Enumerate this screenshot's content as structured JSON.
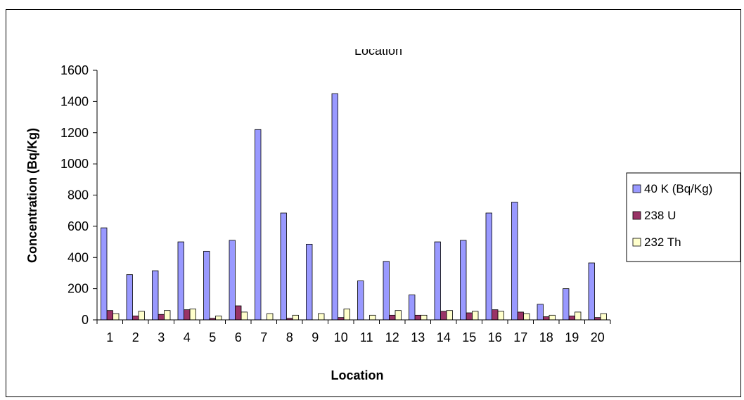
{
  "chart_data": {
    "type": "bar",
    "title": "Location",
    "xlabel": "Location",
    "ylabel": "Concentration (Bq/Kg)",
    "ylim": [
      0,
      1600
    ],
    "yticks": [
      0,
      200,
      400,
      600,
      800,
      1000,
      1200,
      1400,
      1600
    ],
    "grid": false,
    "legend_position": "right",
    "categories": [
      "1",
      "2",
      "3",
      "4",
      "5",
      "6",
      "7",
      "8",
      "9",
      "10",
      "11",
      "12",
      "13",
      "14",
      "15",
      "16",
      "17",
      "18",
      "19",
      "20"
    ],
    "series": [
      {
        "name": "40 K (Bq/Kg)",
        "color": "#9999ff",
        "values": [
          590,
          290,
          315,
          500,
          440,
          510,
          1220,
          685,
          485,
          1450,
          250,
          375,
          160,
          500,
          510,
          685,
          755,
          100,
          200,
          365
        ]
      },
      {
        "name": "238 U",
        "color": "#993366",
        "values": [
          60,
          25,
          35,
          65,
          10,
          90,
          0,
          10,
          0,
          15,
          0,
          30,
          30,
          55,
          45,
          65,
          50,
          20,
          25,
          15
        ]
      },
      {
        "name": "232 Th",
        "color": "#ffffcc",
        "values": [
          40,
          55,
          60,
          70,
          25,
          50,
          40,
          30,
          40,
          70,
          30,
          60,
          30,
          60,
          55,
          55,
          40,
          30,
          50,
          40
        ]
      }
    ]
  }
}
